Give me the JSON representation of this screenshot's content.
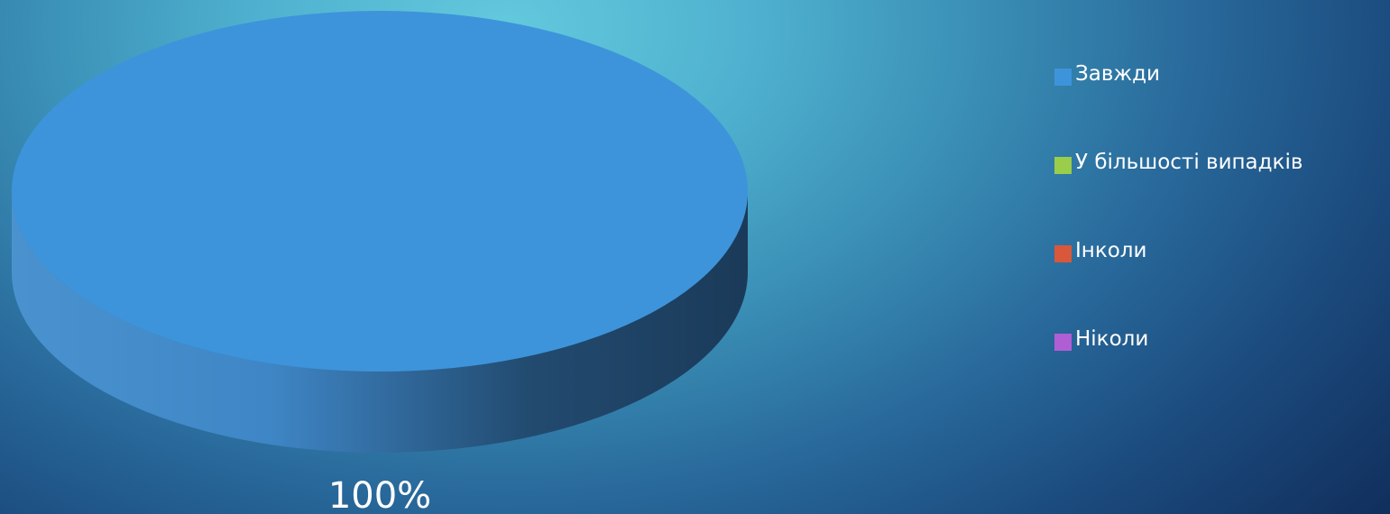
{
  "chart_data": {
    "type": "pie",
    "title": "",
    "categories": [
      "Завжди",
      "У більшості випадків",
      "Інколи",
      "Ніколи"
    ],
    "values": [
      100,
      0,
      0,
      0
    ],
    "data_labels": [
      "100%"
    ],
    "colors": [
      "#3d94db",
      "#9acd4a",
      "#d9573a",
      "#b05ed4"
    ],
    "legend_position": "right",
    "three_d": true
  },
  "colors": {
    "background_top": "#63c9dd",
    "background_bottom": "#11305e",
    "side_light": "#3f86c6",
    "side_dark": "#1b3a59"
  }
}
